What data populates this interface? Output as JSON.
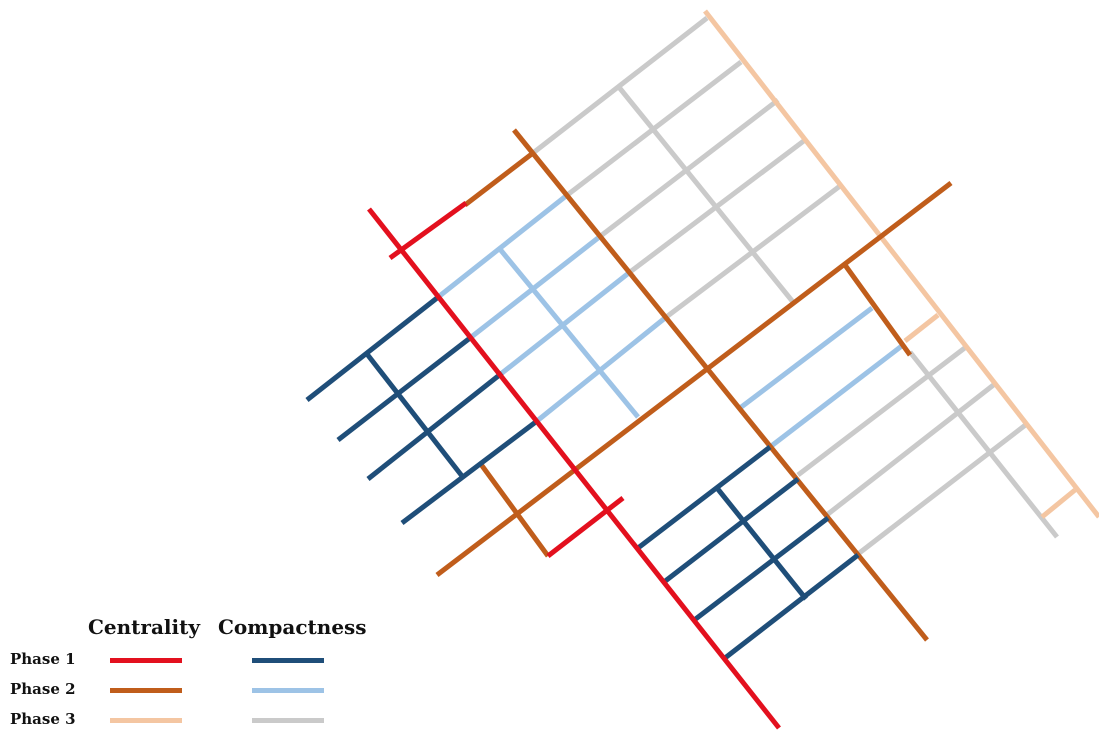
{
  "legend": {
    "centrality_heading": "Centrality",
    "compactness_heading": "Compactness",
    "phases": [
      {
        "label": "Phase 1",
        "centrality_color": "#e3101e",
        "compactness_color": "#1f4e79"
      },
      {
        "label": "Phase 2",
        "centrality_color": "#c05d1b",
        "compactness_color": "#9dc3e6"
      },
      {
        "label": "Phase 3",
        "centrality_color": "#f4c6a2",
        "compactness_color": "#cacaca"
      }
    ]
  }
}
